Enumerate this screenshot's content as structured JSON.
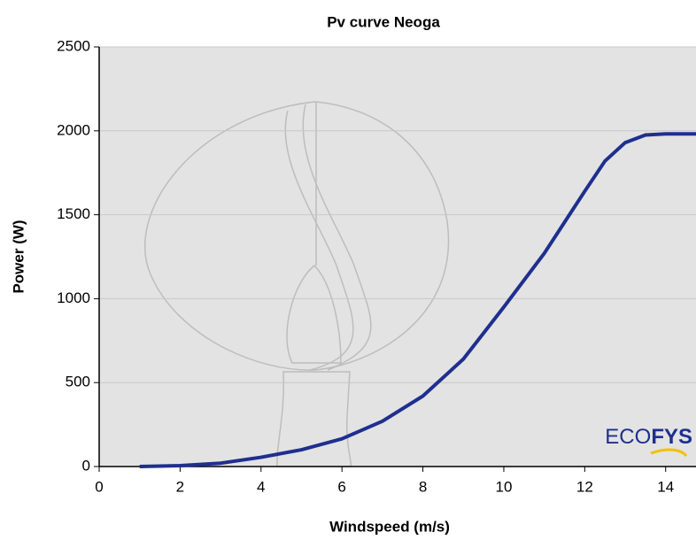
{
  "chart_data": {
    "type": "line",
    "title": "Pv curve Neoga",
    "x_label": "Windspeed (m/s)",
    "y_label": "Power (W)",
    "x": [
      1,
      2,
      3,
      4,
      5,
      6,
      7,
      8,
      9,
      10,
      11,
      12,
      12.5,
      13,
      13.5,
      14,
      14.75
    ],
    "series": [
      {
        "name": "Power",
        "color": "#1f2f8f",
        "values": [
          0,
          5,
          20,
          55,
          100,
          165,
          270,
          420,
          640,
          950,
          1270,
          1640,
          1820,
          1930,
          1975,
          1982,
          1982
        ]
      }
    ],
    "xlim": [
      0,
      14.75
    ],
    "xticks": [
      0,
      2,
      4,
      6,
      8,
      10,
      12,
      14
    ],
    "ylim": [
      0,
      2500
    ],
    "yticks": [
      0,
      500,
      1000,
      1500,
      2000,
      2500
    ],
    "grid": true,
    "logo": {
      "light": "ECO",
      "bold": "FYS"
    }
  }
}
